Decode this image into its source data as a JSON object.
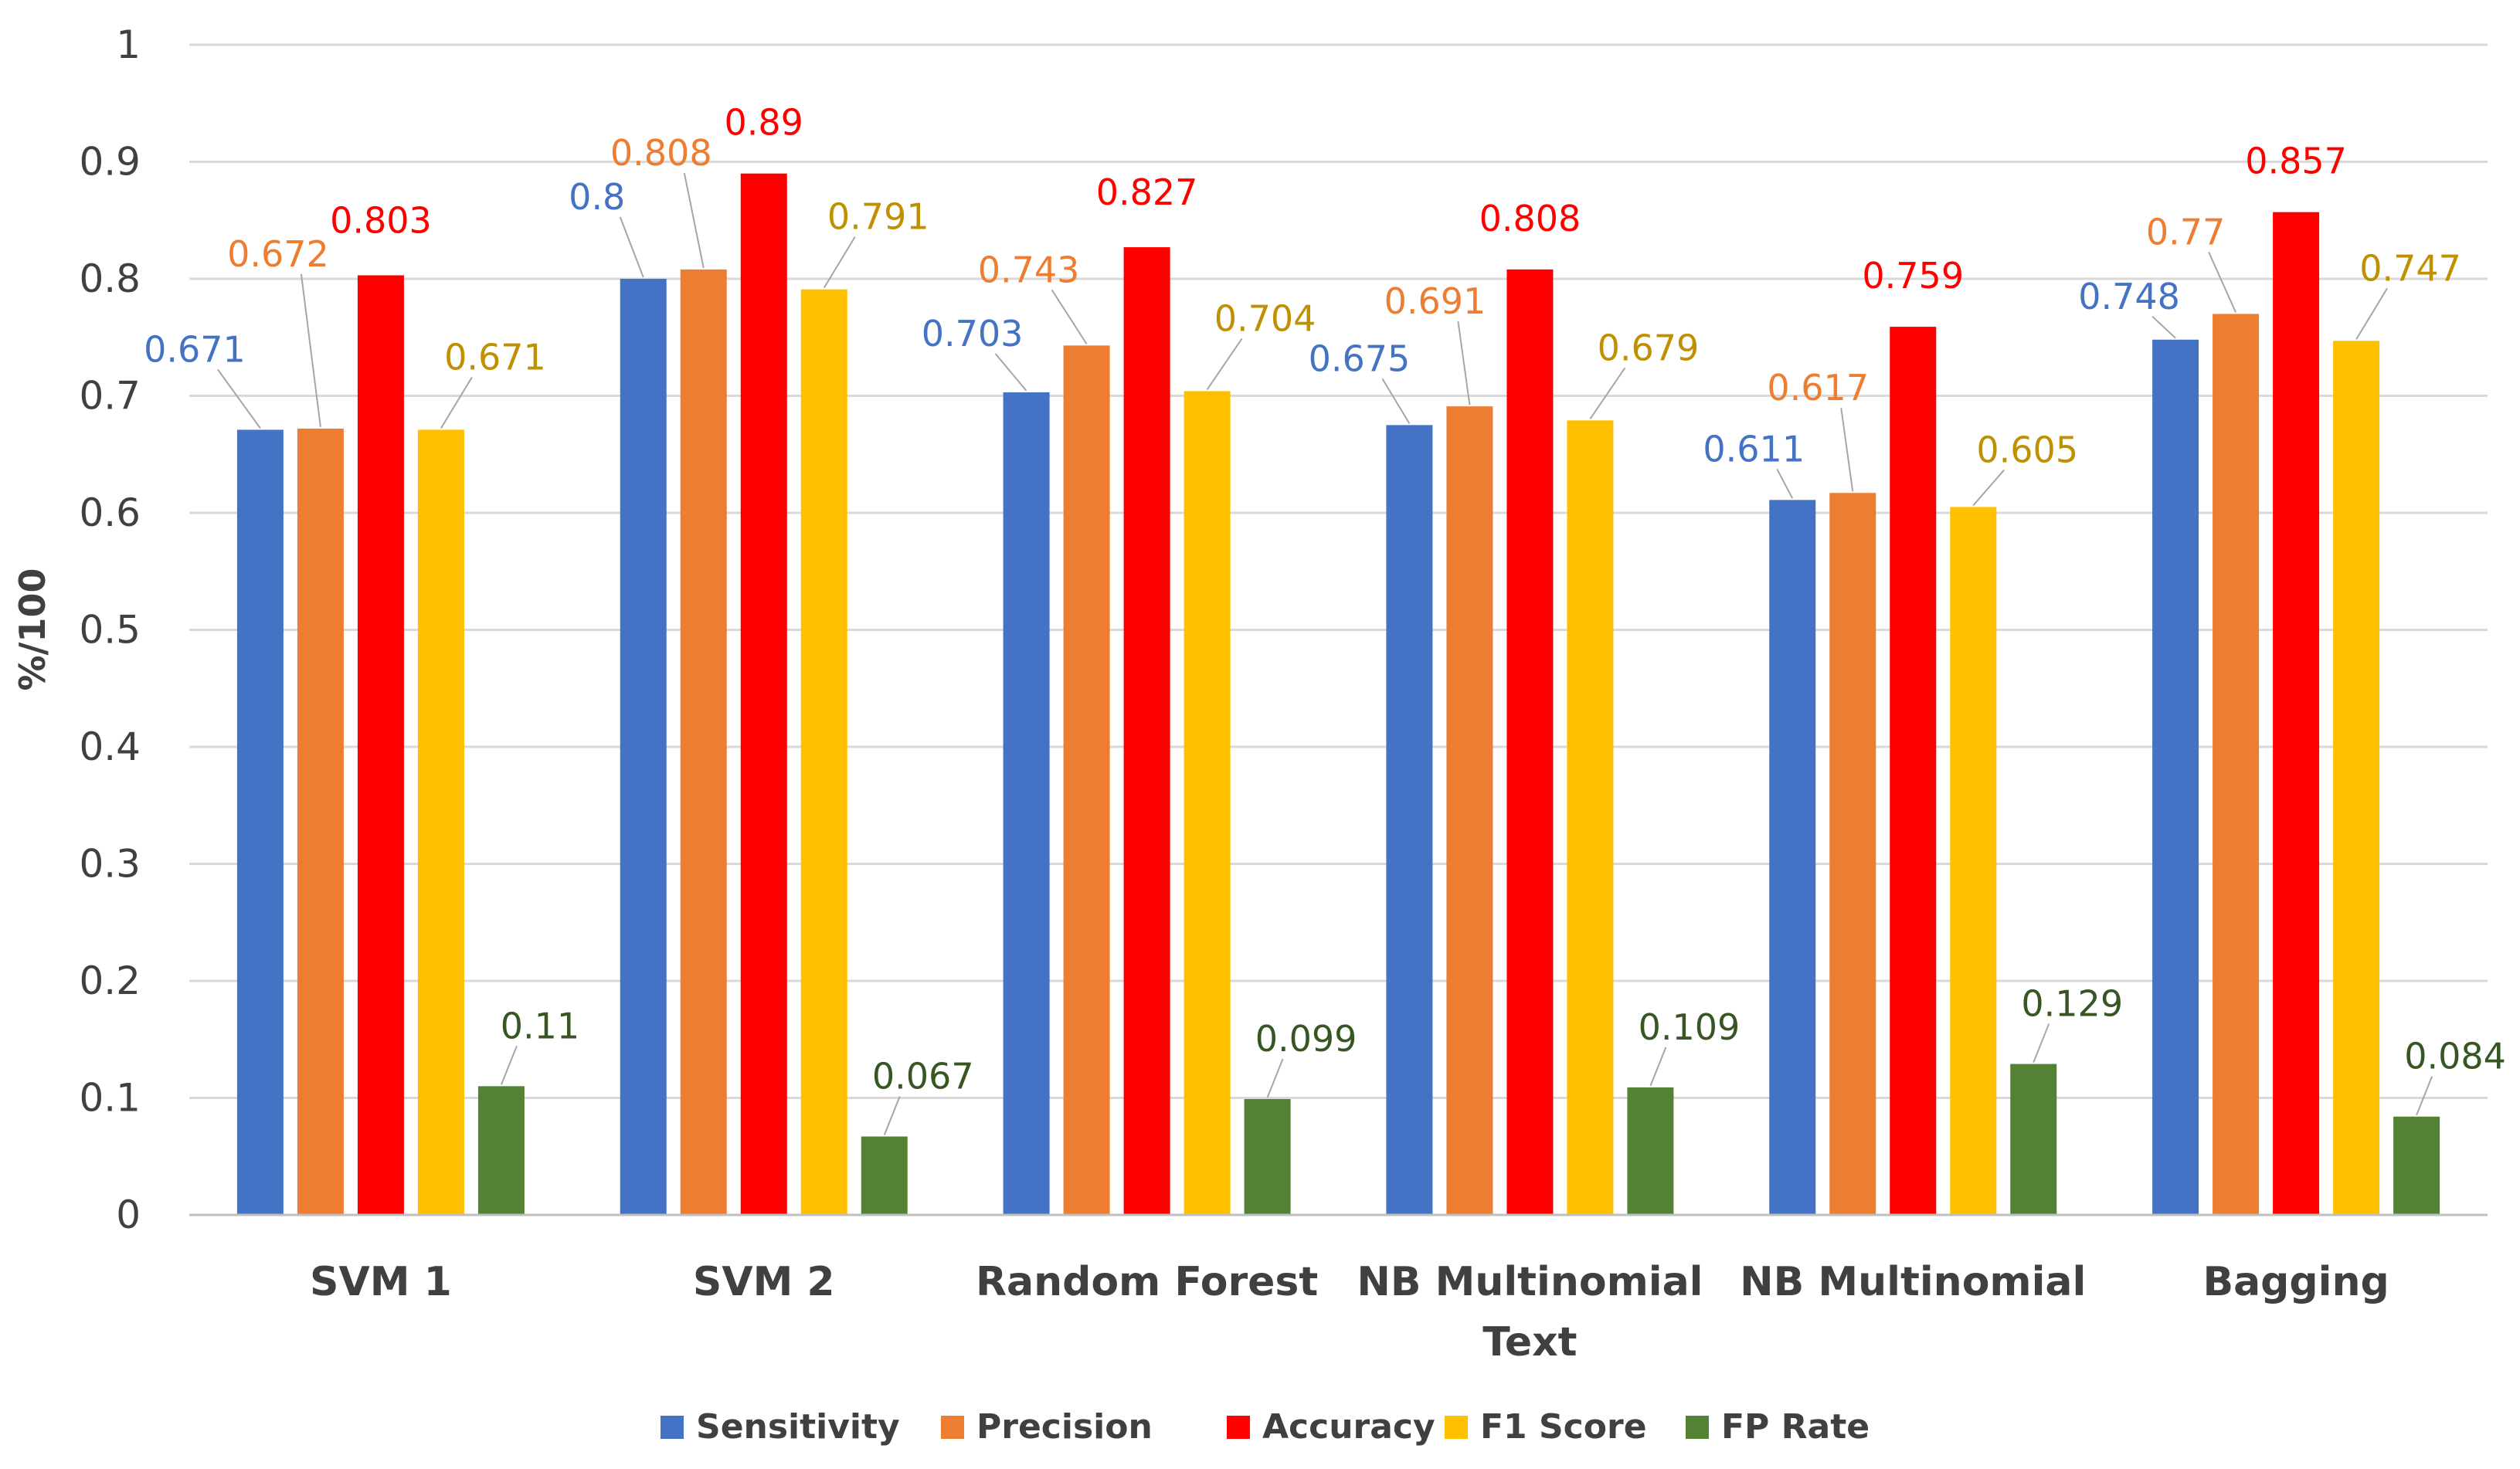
{
  "chart_data": {
    "type": "bar",
    "title": "",
    "xlabel": "",
    "ylabel": "%/100",
    "ylim": [
      0,
      1
    ],
    "yticks": [
      "0",
      "0.1",
      "0.2",
      "0.3",
      "0.4",
      "0.5",
      "0.6",
      "0.7",
      "0.8",
      "0.9",
      "1"
    ],
    "grid": true,
    "legend_position": "bottom",
    "categories": [
      [
        "SVM 1"
      ],
      [
        "SVM 2"
      ],
      [
        "Random Forest"
      ],
      [
        "NB Multinomial",
        "Text"
      ],
      [
        "NB Multinomial"
      ],
      [
        "Bagging"
      ]
    ],
    "series": [
      {
        "name": "Sensitivity",
        "color": "#4472C4",
        "label_color": "#4472C4",
        "values": [
          0.671,
          0.8,
          0.703,
          0.675,
          0.611,
          0.748
        ],
        "labels": [
          "0.671",
          "0.8",
          "0.703",
          "0.675",
          "0.611",
          "0.748"
        ]
      },
      {
        "name": "Precision",
        "color": "#ED7D31",
        "label_color": "#ED7D31",
        "values": [
          0.672,
          0.808,
          0.743,
          0.691,
          0.617,
          0.77
        ],
        "labels": [
          "0.672",
          "0.808",
          "0.743",
          "0.691",
          "0.617",
          "0.77"
        ]
      },
      {
        "name": "Accuracy",
        "color": "#FF0000",
        "label_color": "#FF0000",
        "values": [
          0.803,
          0.89,
          0.827,
          0.808,
          0.759,
          0.857
        ],
        "labels": [
          "0.803",
          "0.89",
          "0.827",
          "0.808",
          "0.759",
          "0.857"
        ]
      },
      {
        "name": "F1 Score",
        "color": "#FFC000",
        "label_color": "#BF9000",
        "values": [
          0.671,
          0.791,
          0.704,
          0.679,
          0.605,
          0.747
        ],
        "labels": [
          "0.671",
          "0.791",
          "0.704",
          "0.679",
          "0.605",
          "0.747"
        ]
      },
      {
        "name": "FP Rate",
        "color": "#548235",
        "label_color": "#375623",
        "values": [
          0.11,
          0.067,
          0.099,
          0.109,
          0.129,
          0.084
        ],
        "labels": [
          "0.11",
          "0.067",
          "0.099",
          "0.109",
          "0.129",
          "0.084"
        ]
      }
    ]
  }
}
